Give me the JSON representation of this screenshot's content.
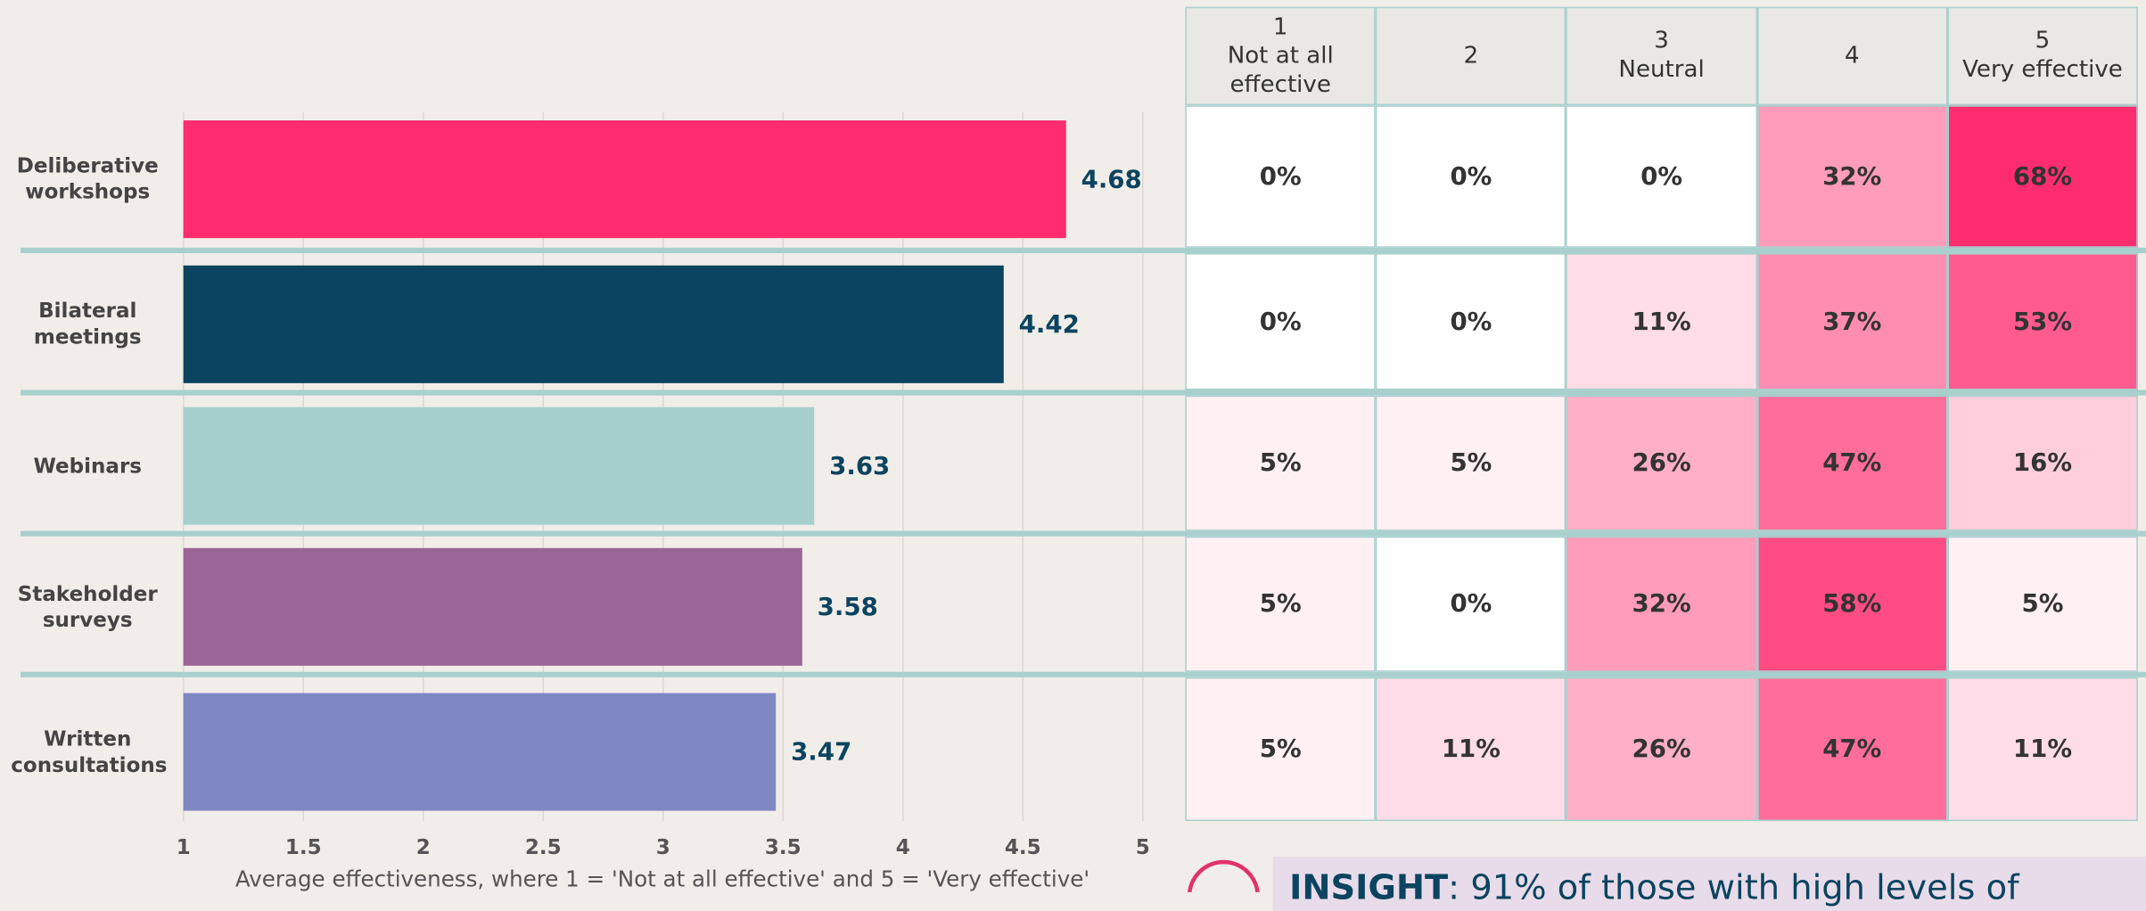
{
  "chart_data": [
    {
      "type": "hbar",
      "categories": [
        "Deliberative workshops",
        "Bilateral meetings",
        "Webinars",
        "Stakeholder surveys",
        "Written consultations"
      ],
      "values": [
        4.68,
        4.42,
        3.63,
        3.58,
        3.47
      ],
      "colors": [
        "#ff2d6f",
        "#0b4460",
        "#a5cfcc",
        "#9b6597",
        "#7f88c2"
      ],
      "xlim": [
        1,
        5
      ],
      "xticks": [
        1,
        1.5,
        2,
        2.5,
        3,
        3.5,
        4,
        4.5,
        5
      ],
      "xlabel": "Average effectiveness, where 1 = 'Not at all effective' and 5 = 'Very effective'",
      "grid": true
    },
    {
      "type": "heatmap",
      "columns": [
        "1\nNot at all effective",
        "2",
        "3\nNeutral",
        "4",
        "5\nVery effective"
      ],
      "values": [
        [
          0,
          0,
          0,
          32,
          68
        ],
        [
          0,
          0,
          11,
          37,
          53
        ],
        [
          5,
          5,
          26,
          47,
          16
        ],
        [
          5,
          0,
          32,
          58,
          5
        ],
        [
          5,
          11,
          26,
          47,
          11
        ]
      ],
      "value_labels": [
        [
          "0%",
          "0%",
          "0%",
          "32%",
          "68%"
        ],
        [
          "0%",
          "0%",
          "11%",
          "37%",
          "53%"
        ],
        [
          "5%",
          "5%",
          "26%",
          "47%",
          "16%"
        ],
        [
          "5%",
          "0%",
          "32%",
          "58%",
          "5%"
        ],
        [
          "5%",
          "11%",
          "26%",
          "47%",
          "11%"
        ]
      ],
      "color_scale": [
        "#ffffff",
        "#ff2d6f"
      ],
      "zlim": [
        0,
        68
      ]
    }
  ],
  "insight": {
    "label": "INSIGHT",
    "text": ": 91% of those with high levels of"
  }
}
